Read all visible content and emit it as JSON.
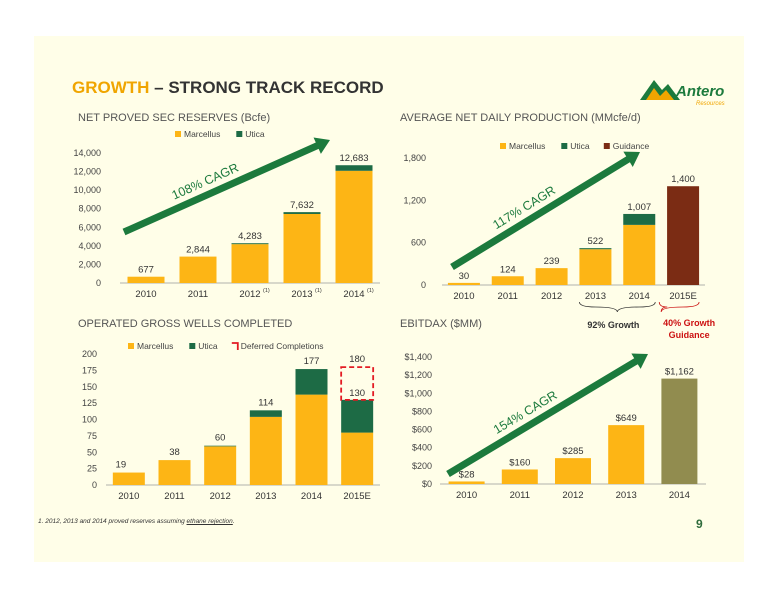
{
  "title": {
    "accent": "GROWTH",
    "rest": " – STRONG TRACK RECORD"
  },
  "logo": {
    "name": "Antero",
    "sub": "Resources"
  },
  "page_number": "9",
  "footnote": {
    "text": "1.  2012, 2013 and 2014 proved reserves assuming ",
    "link": "ethane rejection",
    "end": "."
  },
  "colors": {
    "marcellus": "#FDB515",
    "utica": "#1D6B45",
    "guidance": "#7B2C14",
    "ebitdax_2014": "#918C4F",
    "arrow": "#1C7A3D",
    "deferred": "#E31B23",
    "growth_red": "#CC1111"
  },
  "headers": {
    "reserves": "NET PROVED SEC RESERVES (Bcfe)",
    "production": "AVERAGE NET DAILY PRODUCTION (MMcfe/d)",
    "wells": "OPERATED GROSS WELLS COMPLETED",
    "ebitdax": "EBITDAX ($MM)"
  },
  "chart_data": [
    {
      "type": "bar",
      "categories": [
        "2010",
        "2011",
        "2012",
        "2013",
        "2014"
      ],
      "category_labels": [
        "2010",
        "2011",
        "2012",
        "2013",
        "2014"
      ],
      "superscripts": [
        "",
        "",
        "(1)",
        "(1)",
        "(1)"
      ],
      "series": [
        {
          "name": "Marcellus",
          "values": [
            677,
            2844,
            4183,
            7432,
            12083
          ]
        },
        {
          "name": "Utica",
          "values": [
            0,
            0,
            100,
            200,
            600
          ]
        }
      ],
      "totals": [
        "677",
        "2,844",
        "4,283",
        "7,632",
        "12,683"
      ],
      "ylim": [
        0,
        14000
      ],
      "yticks": [
        "0",
        "2,000",
        "4,000",
        "6,000",
        "8,000",
        "10,000",
        "12,000",
        "14,000"
      ],
      "arrow_label": "108% CAGR",
      "legend": "top"
    },
    {
      "type": "bar",
      "categories": [
        "2010",
        "2011",
        "2012",
        "2013",
        "2014",
        "2015E"
      ],
      "category_labels": [
        "2010",
        "2011",
        "2012",
        "2013",
        "2014",
        "2015E"
      ],
      "series": [
        {
          "name": "Marcellus",
          "values": [
            30,
            124,
            239,
            507,
            852,
            0
          ]
        },
        {
          "name": "Utica",
          "values": [
            0,
            0,
            0,
            15,
            155,
            0
          ]
        },
        {
          "name": "Guidance",
          "values": [
            0,
            0,
            0,
            0,
            0,
            1400
          ]
        }
      ],
      "totals": [
        "30",
        "124",
        "239",
        "522",
        "1,007",
        "1,400"
      ],
      "ylim": [
        0,
        1800
      ],
      "yticks": [
        "0",
        "600",
        "1,200",
        "1,800"
      ],
      "arrow_label": "117% CAGR",
      "annotations": [
        "92%  Growth",
        "40%  Growth",
        "Guidance"
      ],
      "legend": "top"
    },
    {
      "type": "bar",
      "categories": [
        "2010",
        "2011",
        "2012",
        "2013",
        "2014",
        "2015E"
      ],
      "category_labels": [
        "2010",
        "2011",
        "2012",
        "2013",
        "2014",
        "2015E"
      ],
      "series": [
        {
          "name": "Marcellus",
          "values": [
            19,
            38,
            59,
            104,
            138,
            80
          ]
        },
        {
          "name": "Utica",
          "values": [
            0,
            0,
            1,
            10,
            39,
            50
          ]
        },
        {
          "name": "Deferred Completions",
          "values": [
            0,
            0,
            0,
            0,
            0,
            50
          ]
        }
      ],
      "totals": [
        "19",
        "38",
        "60",
        "114",
        "177",
        "130"
      ],
      "deferred_total": "180",
      "ylim": [
        0,
        200
      ],
      "yticks": [
        "0",
        "25",
        "50",
        "75",
        "100",
        "125",
        "150",
        "175",
        "200"
      ],
      "legend": "top"
    },
    {
      "type": "bar",
      "categories": [
        "2010",
        "2011",
        "2012",
        "2013",
        "2014"
      ],
      "category_labels": [
        "2010",
        "2011",
        "2012",
        "2013",
        "2014"
      ],
      "values": [
        28,
        160,
        285,
        649,
        1162
      ],
      "value_labels": [
        "$28",
        "$160",
        "$285",
        "$649",
        "$1,162"
      ],
      "ylim": [
        0,
        1400
      ],
      "yticks": [
        "$0",
        "$200",
        "$400",
        "$600",
        "$800",
        "$1,000",
        "$1,200",
        "$1,400"
      ],
      "arrow_label": "154% CAGR"
    }
  ]
}
